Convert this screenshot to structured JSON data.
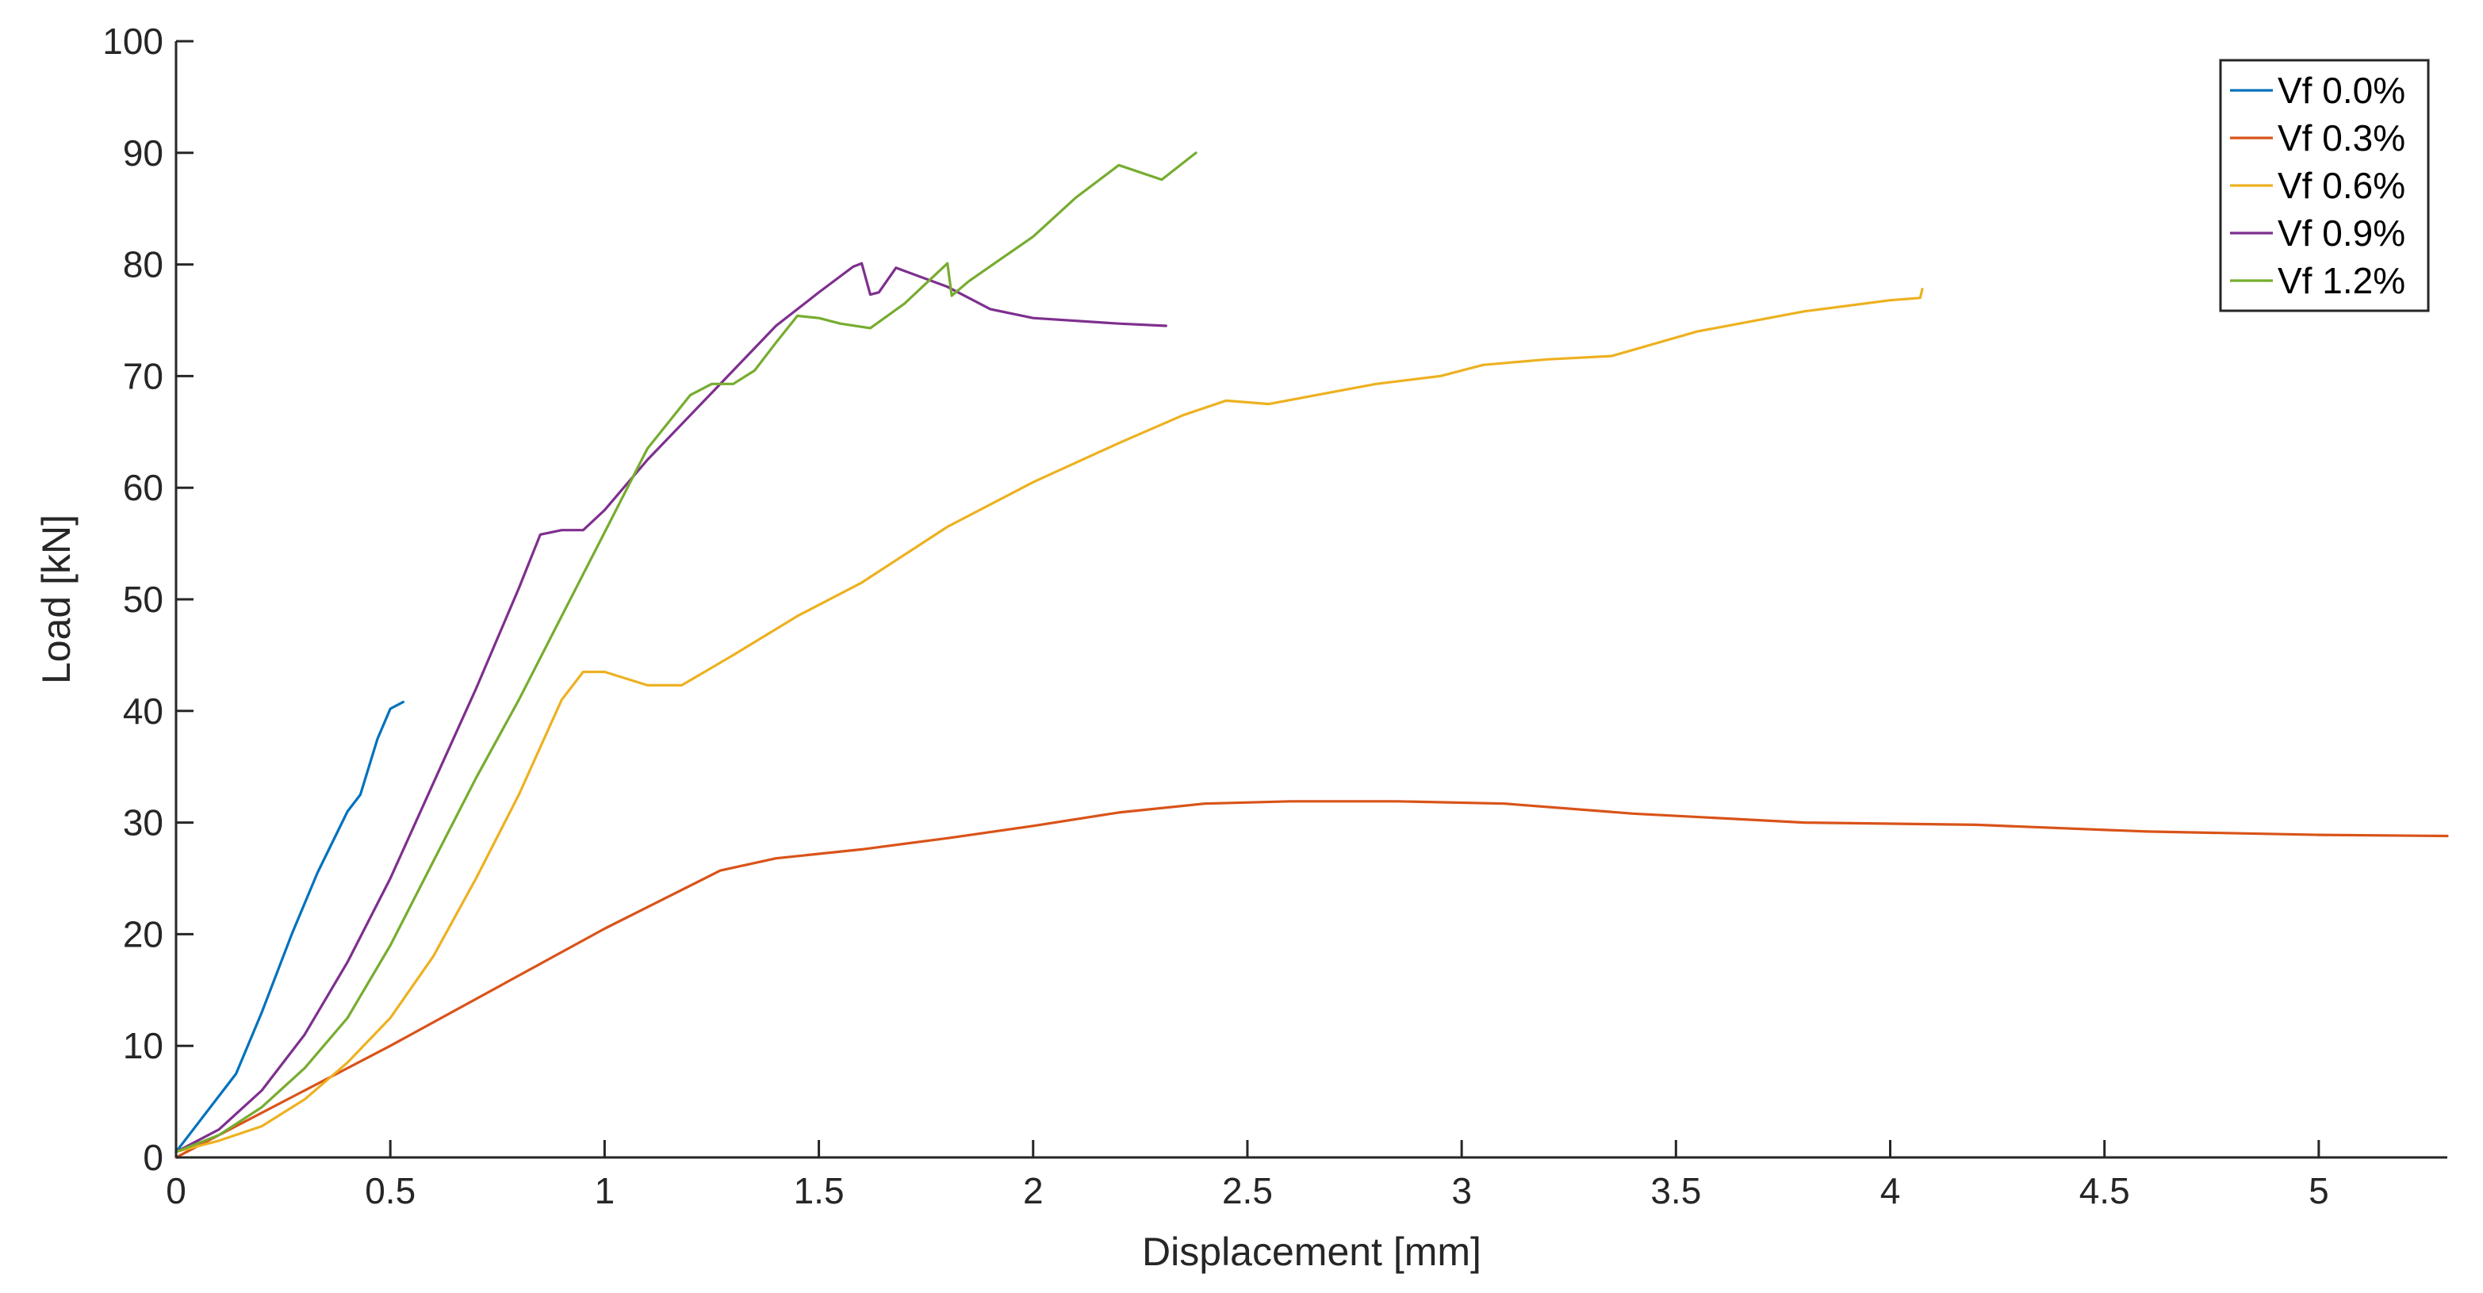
{
  "chart_data": {
    "type": "line",
    "title": "",
    "xlabel": "Displacement [mm]",
    "ylabel": "Load [kN]",
    "xlim": [
      0,
      5.3
    ],
    "ylim": [
      0,
      100
    ],
    "xticks": [
      0,
      0.5,
      1,
      1.5,
      2,
      2.5,
      3,
      3.5,
      4,
      4.5,
      5
    ],
    "xtick_labels": [
      "0",
      "0.5",
      "1",
      "1.5",
      "2",
      "2.5",
      "3",
      "3.5",
      "4",
      "4.5",
      "5"
    ],
    "yticks": [
      0,
      10,
      20,
      30,
      40,
      50,
      60,
      70,
      80,
      90,
      100
    ],
    "ytick_labels": [
      "0",
      "10",
      "20",
      "30",
      "40",
      "50",
      "60",
      "70",
      "80",
      "90",
      "100"
    ],
    "grid": false,
    "legend_position": "top-right",
    "series": [
      {
        "name": "Vf 0.0%",
        "color": "#0072BD",
        "x": [
          0,
          0.05,
          0.14,
          0.2,
          0.27,
          0.33,
          0.4,
          0.43,
          0.47,
          0.5,
          0.53
        ],
        "y": [
          0.5,
          3,
          7.5,
          13,
          20,
          25.5,
          31,
          32.5,
          37.5,
          40.2,
          40.8
        ]
      },
      {
        "name": "Vf 0.3%",
        "color": "#D95319",
        "x": [
          0,
          0.5,
          1.0,
          1.27,
          1.4,
          1.6,
          1.8,
          2.0,
          2.2,
          2.4,
          2.6,
          2.85,
          3.1,
          3.4,
          3.8,
          4.2,
          4.6,
          5.0,
          5.3
        ],
        "y": [
          0,
          10,
          20.5,
          25.7,
          26.8,
          27.6,
          28.6,
          29.7,
          30.9,
          31.7,
          31.9,
          31.9,
          31.7,
          30.8,
          30,
          29.8,
          29.2,
          28.9,
          28.8
        ]
      },
      {
        "name": "Vf 0.6%",
        "color": "#EDB120",
        "x": [
          0,
          0.1,
          0.2,
          0.3,
          0.4,
          0.5,
          0.6,
          0.7,
          0.8,
          0.9,
          0.95,
          1.0,
          1.1,
          1.18,
          1.3,
          1.45,
          1.6,
          1.8,
          2.0,
          2.2,
          2.35,
          2.45,
          2.55,
          2.8,
          2.95,
          3.05,
          3.2,
          3.35,
          3.55,
          3.8,
          4.0,
          4.07,
          4.075
        ],
        "y": [
          0.5,
          1.5,
          2.8,
          5.2,
          8.5,
          12.5,
          18,
          25,
          32.5,
          41,
          43.5,
          43.5,
          42.3,
          42.3,
          45,
          48.5,
          51.5,
          56.5,
          60.5,
          64,
          66.5,
          67.8,
          67.5,
          69.3,
          70,
          71,
          71.5,
          71.8,
          74,
          75.8,
          76.8,
          77,
          77.8
        ]
      },
      {
        "name": "Vf 0.9%",
        "color": "#7E2F8E",
        "x": [
          0,
          0.1,
          0.2,
          0.3,
          0.4,
          0.5,
          0.6,
          0.7,
          0.8,
          0.85,
          0.9,
          0.95,
          1.0,
          1.1,
          1.2,
          1.3,
          1.4,
          1.5,
          1.58,
          1.6,
          1.62,
          1.64,
          1.68,
          1.8,
          1.9,
          2.0,
          2.2,
          2.31
        ],
        "y": [
          0.5,
          2.5,
          6,
          11,
          17.5,
          25,
          33.5,
          42,
          51,
          55.8,
          56.2,
          56.2,
          58,
          62.5,
          66.5,
          70.5,
          74.5,
          77.5,
          79.8,
          80.1,
          77.3,
          77.5,
          79.7,
          78,
          76,
          75.2,
          74.7,
          74.5
        ]
      },
      {
        "name": "Vf 1.2%",
        "color": "#77AC30",
        "x": [
          0,
          0.1,
          0.2,
          0.3,
          0.4,
          0.5,
          0.6,
          0.7,
          0.8,
          0.9,
          1.0,
          1.1,
          1.2,
          1.25,
          1.3,
          1.35,
          1.4,
          1.45,
          1.5,
          1.55,
          1.62,
          1.7,
          1.8,
          1.81,
          1.85,
          2.0,
          2.1,
          2.2,
          2.3,
          2.38
        ],
        "y": [
          0.5,
          2,
          4.5,
          8,
          12.5,
          19,
          26.5,
          34,
          41,
          48.5,
          56,
          63.5,
          68.3,
          69.3,
          69.3,
          70.5,
          73,
          75.4,
          75.2,
          74.7,
          74.3,
          76.5,
          80.1,
          77.2,
          78.5,
          82.5,
          86,
          88.9,
          87.6,
          90
        ]
      }
    ]
  }
}
